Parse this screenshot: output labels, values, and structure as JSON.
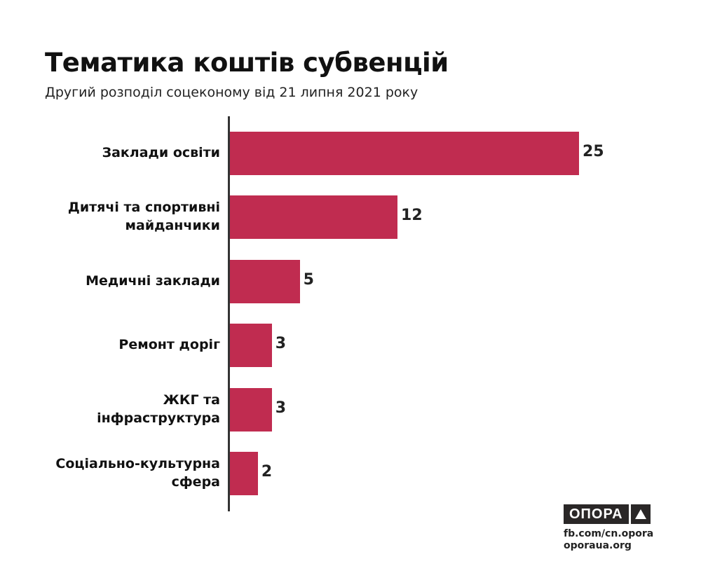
{
  "chart_data": {
    "type": "bar",
    "orientation": "horizontal",
    "title": "Тематика коштів субвенцій",
    "subtitle": "Другий розподіл соцеконому від 21 липня 2021 року",
    "categories": [
      "Заклади освіти",
      "Дитячі та спортивні майданчики",
      "Медичні заклади",
      "Ремонт доріг",
      "ЖКГ та інфраструктура",
      "Соціально-культурна сфера"
    ],
    "category_lines": [
      [
        "Заклади освіти"
      ],
      [
        "Дитячі та спортивні",
        "майданчики"
      ],
      [
        "Медичні заклади"
      ],
      [
        "Ремонт доріг"
      ],
      [
        "ЖКГ та",
        "інфраструктура"
      ],
      [
        "Соціально-культурна",
        "сфера"
      ]
    ],
    "values": [
      25,
      12,
      5,
      3,
      3,
      2
    ],
    "xlim": [
      0,
      25
    ],
    "grid": false,
    "bar_color": "#c02c50"
  },
  "footer": {
    "logo_text": "ОПОРА",
    "source_1": "fb.com/cn.opora",
    "source_2": "oporaua.org"
  }
}
